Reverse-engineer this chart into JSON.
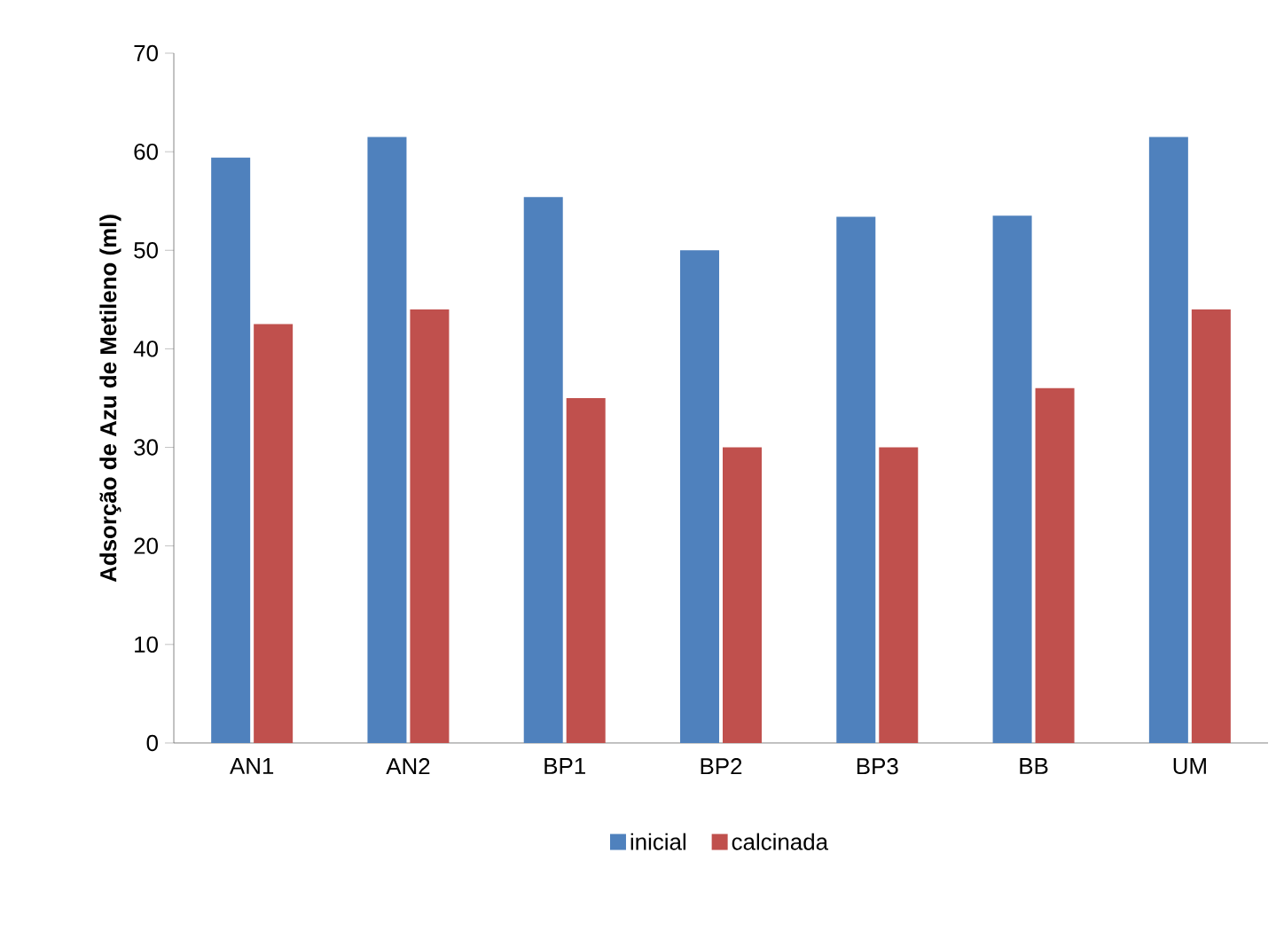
{
  "chart_data": {
    "type": "bar",
    "ylabel": "Adsorção de Azu de Metileno (ml)",
    "categories": [
      "AN1",
      "AN2",
      "BP1",
      "BP2",
      "BP3",
      "BB",
      "UM"
    ],
    "series": [
      {
        "name": "inicial",
        "color": "#4f81bd",
        "values": [
          59.4,
          61.5,
          55.4,
          50,
          53.4,
          53.5,
          61.5
        ]
      },
      {
        "name": "calcinada",
        "color": "#c0504d",
        "values": [
          42.5,
          44,
          35,
          30,
          30,
          36,
          44
        ]
      }
    ],
    "ylim": [
      0,
      70
    ],
    "yticks": [
      0,
      10,
      20,
      30,
      40,
      50,
      60,
      70
    ],
    "grid": false,
    "legend": "bottom"
  }
}
